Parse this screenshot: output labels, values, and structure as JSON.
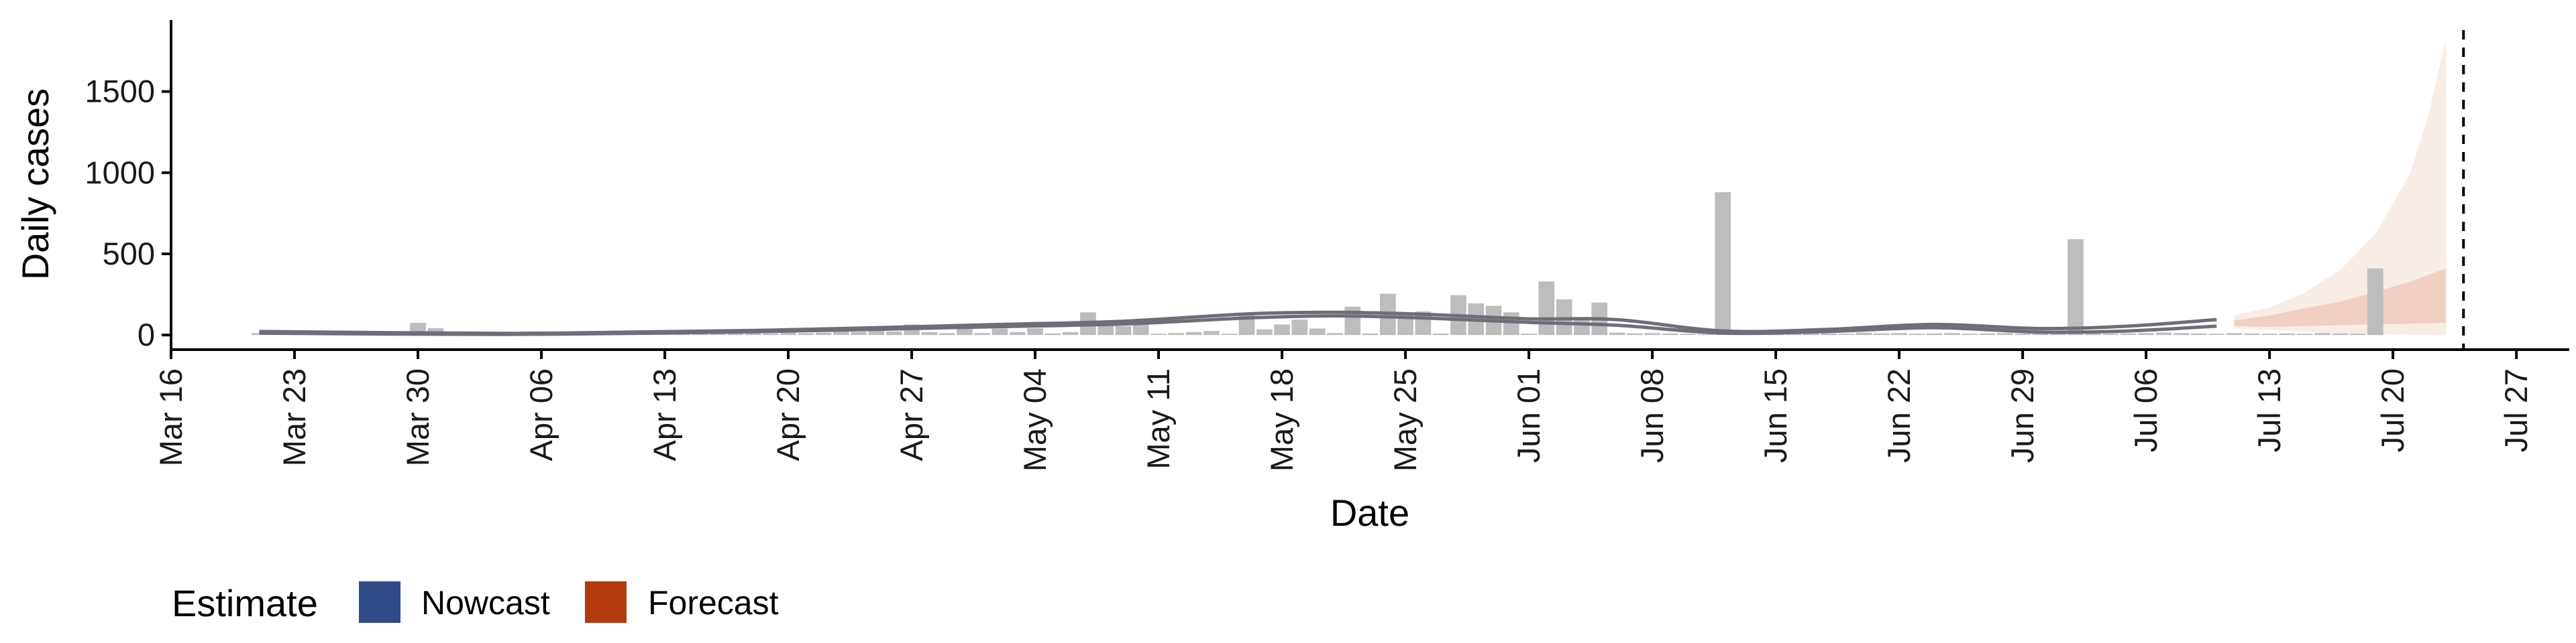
{
  "chart_data": {
    "type": "bar",
    "xlabel": "Date",
    "ylabel": "Daily cases",
    "x_axis": {
      "type": "date",
      "range": [
        "2020-03-16",
        "2020-07-30"
      ],
      "ticks": [
        "2020-03-16",
        "2020-03-23",
        "2020-03-30",
        "2020-04-06",
        "2020-04-13",
        "2020-04-20",
        "2020-04-27",
        "2020-05-04",
        "2020-05-11",
        "2020-05-18",
        "2020-05-25",
        "2020-06-01",
        "2020-06-08",
        "2020-06-15",
        "2020-06-22",
        "2020-06-29",
        "2020-07-06",
        "2020-07-13",
        "2020-07-20",
        "2020-07-27"
      ],
      "tick_labels": [
        "Mar 16",
        "Mar 23",
        "Mar 30",
        "Apr 06",
        "Apr 13",
        "Apr 20",
        "Apr 27",
        "May 04",
        "May 11",
        "May 18",
        "May 25",
        "Jun 01",
        "Jun 08",
        "Jun 15",
        "Jun 22",
        "Jun 29",
        "Jul 06",
        "Jul 13",
        "Jul 20",
        "Jul 27"
      ]
    },
    "y_axis": {
      "range": [
        -90,
        1940
      ],
      "ticks": [
        0,
        500,
        1000,
        1500
      ],
      "tick_labels": [
        "0",
        "500",
        "1000",
        "1500"
      ]
    },
    "grid": false,
    "legend": {
      "title": "Estimate",
      "position": "bottom-left",
      "entries": [
        {
          "label": "Nowcast",
          "color": "#2f4b87"
        },
        {
          "label": "Forecast",
          "color": "#b23a0c"
        }
      ]
    },
    "colors": {
      "bars": "#bdbdbd",
      "nowcast_line": "#6e6e78",
      "forecast_outer_band": "#f8ece6",
      "forecast_inner_band": "#f0d0c2",
      "vline": "#000000",
      "axis": "#000000"
    },
    "reported_cases": [
      {
        "date": "2020-03-21",
        "value": 12
      },
      {
        "date": "2020-03-22",
        "value": 15
      },
      {
        "date": "2020-03-23",
        "value": 18
      },
      {
        "date": "2020-03-24",
        "value": 8
      },
      {
        "date": "2020-03-25",
        "value": 5
      },
      {
        "date": "2020-03-26",
        "value": 4
      },
      {
        "date": "2020-03-27",
        "value": 6
      },
      {
        "date": "2020-03-28",
        "value": 8
      },
      {
        "date": "2020-03-29",
        "value": 10
      },
      {
        "date": "2020-03-30",
        "value": 75
      },
      {
        "date": "2020-03-31",
        "value": 42
      },
      {
        "date": "2020-04-01",
        "value": 15
      },
      {
        "date": "2020-04-02",
        "value": 8
      },
      {
        "date": "2020-04-03",
        "value": 6
      },
      {
        "date": "2020-04-04",
        "value": 12
      },
      {
        "date": "2020-04-05",
        "value": 8
      },
      {
        "date": "2020-04-06",
        "value": 10
      },
      {
        "date": "2020-04-07",
        "value": 5
      },
      {
        "date": "2020-04-08",
        "value": 4
      },
      {
        "date": "2020-04-09",
        "value": 6
      },
      {
        "date": "2020-04-10",
        "value": 8
      },
      {
        "date": "2020-04-11",
        "value": 5
      },
      {
        "date": "2020-04-12",
        "value": 4
      },
      {
        "date": "2020-04-13",
        "value": 8
      },
      {
        "date": "2020-04-14",
        "value": 10
      },
      {
        "date": "2020-04-15",
        "value": 12
      },
      {
        "date": "2020-04-16",
        "value": 8
      },
      {
        "date": "2020-04-17",
        "value": 15
      },
      {
        "date": "2020-04-18",
        "value": 12
      },
      {
        "date": "2020-04-19",
        "value": 10
      },
      {
        "date": "2020-04-20",
        "value": 15
      },
      {
        "date": "2020-04-21",
        "value": 12
      },
      {
        "date": "2020-04-22",
        "value": 15
      },
      {
        "date": "2020-04-23",
        "value": 40
      },
      {
        "date": "2020-04-24",
        "value": 20
      },
      {
        "date": "2020-04-25",
        "value": 40
      },
      {
        "date": "2020-04-26",
        "value": 22
      },
      {
        "date": "2020-04-27",
        "value": 65
      },
      {
        "date": "2020-04-28",
        "value": 18
      },
      {
        "date": "2020-04-29",
        "value": 12
      },
      {
        "date": "2020-04-30",
        "value": 45
      },
      {
        "date": "2020-05-01",
        "value": 12
      },
      {
        "date": "2020-05-02",
        "value": 40
      },
      {
        "date": "2020-05-03",
        "value": 18
      },
      {
        "date": "2020-05-04",
        "value": 42
      },
      {
        "date": "2020-05-05",
        "value": 10
      },
      {
        "date": "2020-05-06",
        "value": 18
      },
      {
        "date": "2020-05-07",
        "value": 140
      },
      {
        "date": "2020-05-08",
        "value": 90
      },
      {
        "date": "2020-05-09",
        "value": 55
      },
      {
        "date": "2020-05-10",
        "value": 70
      },
      {
        "date": "2020-05-11",
        "value": 8
      },
      {
        "date": "2020-05-12",
        "value": 12
      },
      {
        "date": "2020-05-13",
        "value": 18
      },
      {
        "date": "2020-05-14",
        "value": 25
      },
      {
        "date": "2020-05-15",
        "value": 8
      },
      {
        "date": "2020-05-16",
        "value": 130
      },
      {
        "date": "2020-05-17",
        "value": 35
      },
      {
        "date": "2020-05-18",
        "value": 65
      },
      {
        "date": "2020-05-19",
        "value": 95
      },
      {
        "date": "2020-05-20",
        "value": 40
      },
      {
        "date": "2020-05-21",
        "value": 12
      },
      {
        "date": "2020-05-22",
        "value": 175
      },
      {
        "date": "2020-05-23",
        "value": 10
      },
      {
        "date": "2020-05-24",
        "value": 255
      },
      {
        "date": "2020-05-25",
        "value": 130
      },
      {
        "date": "2020-05-26",
        "value": 145
      },
      {
        "date": "2020-05-27",
        "value": 10
      },
      {
        "date": "2020-05-28",
        "value": 245
      },
      {
        "date": "2020-05-29",
        "value": 195
      },
      {
        "date": "2020-05-30",
        "value": 180
      },
      {
        "date": "2020-05-31",
        "value": 140
      },
      {
        "date": "2020-06-01",
        "value": 8
      },
      {
        "date": "2020-06-02",
        "value": 330
      },
      {
        "date": "2020-06-03",
        "value": 220
      },
      {
        "date": "2020-06-04",
        "value": 110
      },
      {
        "date": "2020-06-05",
        "value": 200
      },
      {
        "date": "2020-06-06",
        "value": 15
      },
      {
        "date": "2020-06-07",
        "value": 10
      },
      {
        "date": "2020-06-08",
        "value": 12
      },
      {
        "date": "2020-06-09",
        "value": 10
      },
      {
        "date": "2020-06-10",
        "value": 8
      },
      {
        "date": "2020-06-11",
        "value": 5
      },
      {
        "date": "2020-06-12",
        "value": 880
      },
      {
        "date": "2020-06-13",
        "value": 8
      },
      {
        "date": "2020-06-14",
        "value": 6
      },
      {
        "date": "2020-06-15",
        "value": 10
      },
      {
        "date": "2020-06-16",
        "value": 8
      },
      {
        "date": "2020-06-17",
        "value": 12
      },
      {
        "date": "2020-06-18",
        "value": 10
      },
      {
        "date": "2020-06-19",
        "value": 8
      },
      {
        "date": "2020-06-20",
        "value": 15
      },
      {
        "date": "2020-06-21",
        "value": 10
      },
      {
        "date": "2020-06-22",
        "value": 12
      },
      {
        "date": "2020-06-23",
        "value": 8
      },
      {
        "date": "2020-06-24",
        "value": 10
      },
      {
        "date": "2020-06-25",
        "value": 12
      },
      {
        "date": "2020-06-26",
        "value": 8
      },
      {
        "date": "2020-06-27",
        "value": 10
      },
      {
        "date": "2020-06-28",
        "value": 12
      },
      {
        "date": "2020-06-29",
        "value": 8
      },
      {
        "date": "2020-06-30",
        "value": 10
      },
      {
        "date": "2020-07-01",
        "value": 8
      },
      {
        "date": "2020-07-02",
        "value": 590
      },
      {
        "date": "2020-07-03",
        "value": 12
      },
      {
        "date": "2020-07-04",
        "value": 8
      },
      {
        "date": "2020-07-05",
        "value": 10
      },
      {
        "date": "2020-07-06",
        "value": 12
      },
      {
        "date": "2020-07-07",
        "value": 15
      },
      {
        "date": "2020-07-08",
        "value": 12
      },
      {
        "date": "2020-07-09",
        "value": 10
      },
      {
        "date": "2020-07-10",
        "value": 8
      },
      {
        "date": "2020-07-11",
        "value": 12
      },
      {
        "date": "2020-07-12",
        "value": 10
      },
      {
        "date": "2020-07-13",
        "value": 8
      },
      {
        "date": "2020-07-14",
        "value": 10
      },
      {
        "date": "2020-07-15",
        "value": 8
      },
      {
        "date": "2020-07-16",
        "value": 12
      },
      {
        "date": "2020-07-17",
        "value": 10
      },
      {
        "date": "2020-07-18",
        "value": 8
      },
      {
        "date": "2020-07-19",
        "value": 410
      }
    ],
    "nowcast_upper": [
      {
        "date": "2020-03-21",
        "value": 22
      },
      {
        "date": "2020-03-28",
        "value": 15
      },
      {
        "date": "2020-04-04",
        "value": 10
      },
      {
        "date": "2020-04-11",
        "value": 18
      },
      {
        "date": "2020-04-18",
        "value": 28
      },
      {
        "date": "2020-04-25",
        "value": 45
      },
      {
        "date": "2020-05-02",
        "value": 65
      },
      {
        "date": "2020-05-09",
        "value": 85
      },
      {
        "date": "2020-05-16",
        "value": 130
      },
      {
        "date": "2020-05-21",
        "value": 140
      },
      {
        "date": "2020-05-26",
        "value": 128
      },
      {
        "date": "2020-06-01",
        "value": 100
      },
      {
        "date": "2020-06-06",
        "value": 95
      },
      {
        "date": "2020-06-12",
        "value": 25
      },
      {
        "date": "2020-06-18",
        "value": 35
      },
      {
        "date": "2020-06-24",
        "value": 65
      },
      {
        "date": "2020-06-30",
        "value": 40
      },
      {
        "date": "2020-07-05",
        "value": 55
      },
      {
        "date": "2020-07-10",
        "value": 95
      }
    ],
    "nowcast_lower": [
      {
        "date": "2020-03-21",
        "value": 12
      },
      {
        "date": "2020-03-28",
        "value": 6
      },
      {
        "date": "2020-04-04",
        "value": 4
      },
      {
        "date": "2020-04-11",
        "value": 10
      },
      {
        "date": "2020-04-18",
        "value": 20
      },
      {
        "date": "2020-04-25",
        "value": 35
      },
      {
        "date": "2020-05-02",
        "value": 52
      },
      {
        "date": "2020-05-09",
        "value": 68
      },
      {
        "date": "2020-05-16",
        "value": 105
      },
      {
        "date": "2020-05-21",
        "value": 118
      },
      {
        "date": "2020-05-26",
        "value": 105
      },
      {
        "date": "2020-06-01",
        "value": 78
      },
      {
        "date": "2020-06-06",
        "value": 60
      },
      {
        "date": "2020-06-12",
        "value": 12
      },
      {
        "date": "2020-06-18",
        "value": 22
      },
      {
        "date": "2020-06-24",
        "value": 45
      },
      {
        "date": "2020-06-30",
        "value": 18
      },
      {
        "date": "2020-07-05",
        "value": 25
      },
      {
        "date": "2020-07-10",
        "value": 55
      }
    ],
    "forecast_outer": [
      {
        "date": "2020-07-11",
        "lower": 40,
        "upper": 120
      },
      {
        "date": "2020-07-13",
        "lower": 30,
        "upper": 170
      },
      {
        "date": "2020-07-15",
        "lower": 20,
        "upper": 260
      },
      {
        "date": "2020-07-17",
        "lower": 10,
        "upper": 400
      },
      {
        "date": "2020-07-19",
        "lower": 5,
        "upper": 620
      },
      {
        "date": "2020-07-21",
        "lower": 2,
        "upper": 1000
      },
      {
        "date": "2020-07-22",
        "lower": 0,
        "upper": 1350
      },
      {
        "date": "2020-07-23",
        "lower": 0,
        "upper": 1820
      }
    ],
    "forecast_inner": [
      {
        "date": "2020-07-11",
        "lower": 55,
        "upper": 90
      },
      {
        "date": "2020-07-13",
        "lower": 50,
        "upper": 120
      },
      {
        "date": "2020-07-15",
        "lower": 55,
        "upper": 165
      },
      {
        "date": "2020-07-17",
        "lower": 60,
        "upper": 205
      },
      {
        "date": "2020-07-19",
        "lower": 65,
        "upper": 265
      },
      {
        "date": "2020-07-21",
        "lower": 70,
        "upper": 330
      },
      {
        "date": "2020-07-23",
        "lower": 75,
        "upper": 410
      }
    ],
    "vline_date": "2020-07-24"
  }
}
